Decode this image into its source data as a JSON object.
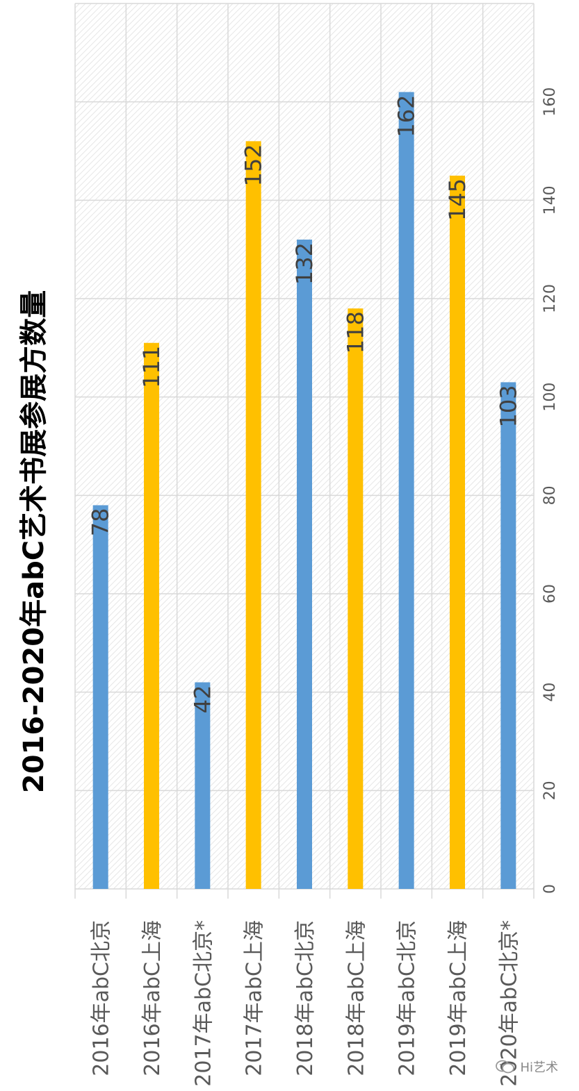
{
  "chart_data": {
    "type": "bar",
    "orientation": "rotated-90",
    "title": "2016-2020年abC艺术书展参展方数量",
    "categories": [
      "2016年abC北京",
      "2016年abC上海",
      "2017年abC北京*",
      "2017年abC上海",
      "2018年abC北京",
      "2018年abC上海",
      "2019年abC北京",
      "2019年abC上海",
      "2020年abC北京*"
    ],
    "values": [
      78,
      111,
      42,
      152,
      132,
      118,
      162,
      145,
      103
    ],
    "colors": [
      "#5b9bd5",
      "#ffc000",
      "#5b9bd5",
      "#ffc000",
      "#5b9bd5",
      "#ffc000",
      "#5b9bd5",
      "#ffc000",
      "#5b9bd5"
    ],
    "ylim": [
      0,
      180
    ],
    "yticks": [
      0,
      20,
      40,
      60,
      80,
      100,
      120,
      140,
      160
    ],
    "grid": true,
    "data_labels": true
  },
  "watermark": {
    "icon": "wechat-icon",
    "text": "Hi艺术"
  }
}
